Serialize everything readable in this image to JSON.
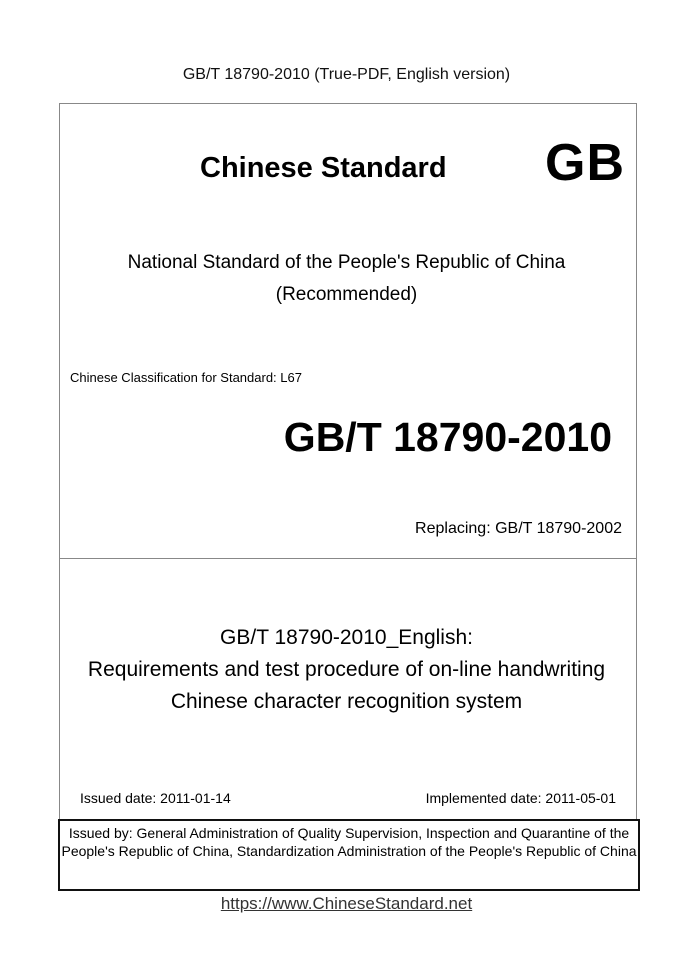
{
  "header": "GB/T 18790-2010 (True-PDF, English version)",
  "cover": {
    "heading": "Chinese Standard",
    "logo": "GB",
    "national_line1": "National Standard of the People's Republic of China",
    "national_line2": "(Recommended)",
    "classification": "Chinese Classification for Standard: L67",
    "standard_number": "GB/T 18790-2010",
    "replacing": "Replacing: GB/T 18790-2002",
    "title_line1": "GB/T 18790-2010_English:",
    "title_line2": "Requirements and test procedure of on-line handwriting",
    "title_line3": "Chinese character recognition system",
    "issued_date": "Issued date: 2011-01-14",
    "implemented_date": "Implemented date: 2011-05-01",
    "issued_by": "Issued by: General Administration of Quality Supervision, Inspection and Quarantine of the People's Republic of China, Standardization Administration of the People's Republic of China"
  },
  "footer": {
    "url": "https://www.ChineseStandard.net"
  }
}
